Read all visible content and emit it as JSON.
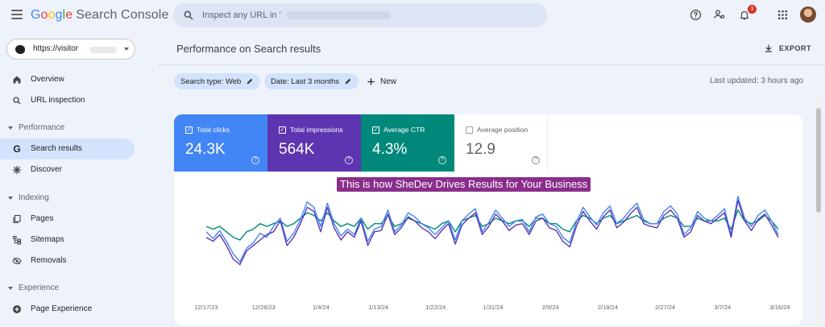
{
  "app": {
    "logo": {
      "g1": "G",
      "g2": "o",
      "g3": "o",
      "g4": "g",
      "g5": "l",
      "g6": "e",
      "product": "Search Console"
    },
    "search_placeholder": "Inspect any URL in '",
    "notifications_count": "3"
  },
  "sidebar": {
    "property_label": "https://visitor",
    "items": {
      "overview": "Overview",
      "url_inspection": "URL inspection",
      "performance_header": "Performance",
      "search_results": "Search results",
      "discover": "Discover",
      "indexing_header": "Indexing",
      "pages": "Pages",
      "sitemaps": "Sitemaps",
      "removals": "Removals",
      "experience_header": "Experience",
      "page_experience": "Page Experience"
    }
  },
  "main": {
    "title": "Performance on Search results",
    "export_label": "EXPORT",
    "filters": {
      "search_type": "Search type: Web",
      "date": "Date: Last 3 months",
      "new_label": "New"
    },
    "last_updated": "Last updated: 3 hours ago",
    "overlay_banner": "This is how SheDev Drives Results for Your Business",
    "metrics": [
      {
        "label": "Total clicks",
        "value": "24.3K",
        "checked": true,
        "color": "#4285f4"
      },
      {
        "label": "Total impressions",
        "value": "564K",
        "checked": true,
        "color": "#5e35b1"
      },
      {
        "label": "Average CTR",
        "value": "4.3%",
        "checked": true,
        "color": "#00897b"
      },
      {
        "label": "Average position",
        "value": "12.9",
        "checked": false,
        "color": "#e8710a"
      }
    ]
  },
  "chart_data": {
    "type": "line",
    "x_tick_labels": [
      "12/17/23",
      "12/26/23",
      "1/4/24",
      "1/13/24",
      "1/22/24",
      "1/31/24",
      "2/9/24",
      "2/18/24",
      "2/27/24",
      "3/7/24",
      "3/16/24"
    ],
    "note_axis": "no y-axis labels shown",
    "series": [
      {
        "name": "Total clicks",
        "color": "#4285f4",
        "values": [
          62,
          57,
          63,
          55,
          46,
          40,
          50,
          54,
          61,
          58,
          66,
          72,
          55,
          61,
          71,
          84,
          80,
          66,
          83,
          68,
          59,
          64,
          60,
          72,
          55,
          64,
          66,
          78,
          62,
          67,
          76,
          73,
          68,
          65,
          60,
          65,
          70,
          56,
          70,
          75,
          79,
          62,
          69,
          78,
          72,
          66,
          70,
          71,
          62,
          73,
          75,
          68,
          66,
          58,
          54,
          69,
          80,
          73,
          67,
          76,
          81,
          68,
          72,
          78,
          83,
          71,
          68,
          68,
          77,
          81,
          75,
          60,
          65,
          77,
          72,
          70,
          74,
          79,
          60,
          88,
          72,
          66,
          74,
          78,
          70,
          60
        ]
      },
      {
        "name": "Total impressions",
        "color": "#5e35b1",
        "values": [
          58,
          55,
          60,
          52,
          42,
          38,
          48,
          52,
          56,
          60,
          62,
          70,
          52,
          58,
          68,
          80,
          77,
          62,
          80,
          65,
          56,
          62,
          58,
          70,
          52,
          62,
          63,
          75,
          60,
          65,
          73,
          70,
          65,
          62,
          57,
          63,
          68,
          53,
          67,
          72,
          76,
          60,
          66,
          75,
          70,
          63,
          67,
          68,
          60,
          70,
          72,
          65,
          63,
          55,
          51,
          66,
          77,
          70,
          64,
          73,
          78,
          65,
          69,
          75,
          80,
          68,
          66,
          65,
          74,
          78,
          72,
          58,
          62,
          74,
          70,
          68,
          72,
          76,
          58,
          85,
          70,
          63,
          71,
          75,
          67,
          58
        ]
      },
      {
        "name": "Average CTR",
        "color": "#00897b",
        "values": [
          66,
          64,
          66,
          62,
          58,
          56,
          62,
          64,
          68,
          66,
          68,
          70,
          66,
          68,
          72,
          76,
          74,
          70,
          76,
          70,
          66,
          68,
          66,
          72,
          64,
          68,
          68,
          74,
          66,
          68,
          72,
          70,
          68,
          66,
          64,
          68,
          70,
          62,
          70,
          72,
          74,
          66,
          68,
          72,
          70,
          68,
          70,
          70,
          66,
          72,
          72,
          68,
          68,
          64,
          62,
          70,
          74,
          72,
          68,
          72,
          74,
          68,
          70,
          72,
          74,
          70,
          68,
          68,
          72,
          74,
          72,
          66,
          66,
          72,
          70,
          70,
          70,
          72,
          64,
          78,
          70,
          68,
          70,
          74,
          70,
          64
        ]
      }
    ]
  }
}
